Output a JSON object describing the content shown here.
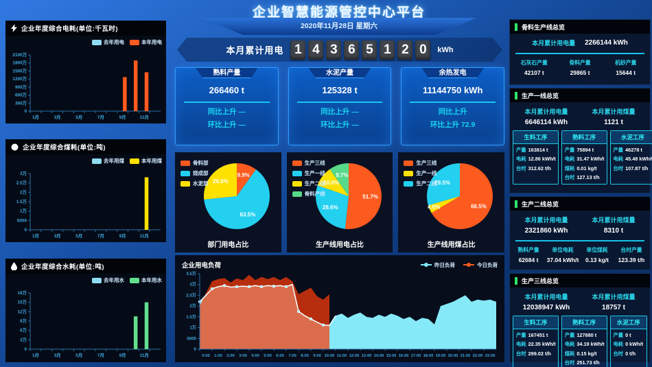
{
  "header": {
    "title": "企业智慧能源管控中心平台",
    "date": "2020年11月28日 星期六"
  },
  "counter": {
    "label": "本月累计用电",
    "digits": [
      "1",
      "4",
      "3",
      "6",
      "5",
      "1",
      "2",
      "0"
    ],
    "unit": "kWh"
  },
  "stat_cards": [
    {
      "title": "熟料产量",
      "value": "266460 t",
      "yoy": "同比上升 —",
      "mom": "环比上升 —"
    },
    {
      "title": "水泥产量",
      "value": "125328 t",
      "yoy": "同比上升 —",
      "mom": "环比上升 —"
    },
    {
      "title": "余热发电",
      "value": "11144750 kWh",
      "yoy": "同比上升",
      "mom": "环比上升 72.9"
    }
  ],
  "right_panels": [
    {
      "title": "骨料生产线总览",
      "stats": [
        {
          "label": "本月累计用电量",
          "value": "2266144 kWh"
        }
      ],
      "bottom": [
        {
          "label": "石灰石产量",
          "value": "42107 t"
        },
        {
          "label": "骨料产量",
          "value": "29865 t"
        },
        {
          "label": "机砂产量",
          "value": "15644 t"
        }
      ]
    },
    {
      "title": "生产一线总览",
      "stats": [
        {
          "label": "本月累计用电量",
          "value": "6646114 kWh"
        },
        {
          "label": "本月累计用煤量",
          "value": "1121 t"
        }
      ],
      "process_cards": [
        {
          "title": "生料工序",
          "rows": [
            [
              "产量",
              "163814 t"
            ],
            [
              "电耗",
              "12.86 kWh/t"
            ],
            [
              "台时",
              "312.62 t/h"
            ]
          ]
        },
        {
          "title": "熟料工序",
          "rows": [
            [
              "产量",
              "75894 t"
            ],
            [
              "电耗",
              "31.47 kWh/t"
            ],
            [
              "煤耗",
              "0.01 kg/t"
            ],
            [
              "台时",
              "127.13 t/h"
            ]
          ]
        },
        {
          "title": "水泥工序",
          "rows": [
            [
              "产量",
              "46278 t"
            ],
            [
              "电耗",
              "45.48 kWh/t"
            ],
            [
              "台时",
              "107.87 t/h"
            ]
          ]
        }
      ]
    },
    {
      "title": "生产二线总览",
      "stats": [
        {
          "label": "本月累计用电量",
          "value": "2321860 kWh"
        },
        {
          "label": "本月累计用煤量",
          "value": "8310 t"
        }
      ],
      "bottom": [
        {
          "label": "熟料产量",
          "value": "62684 t"
        },
        {
          "label": "单位电耗",
          "value": "37.04 kWh/t"
        },
        {
          "label": "单位煤耗",
          "value": "0.13 kg/t"
        },
        {
          "label": "台时产量",
          "value": "123.39 t/h"
        }
      ]
    },
    {
      "title": "生产三线总览",
      "stats": [
        {
          "label": "本月累计用电量",
          "value": "12038947 kWh"
        },
        {
          "label": "本月累计用煤量",
          "value": "18757 t"
        }
      ],
      "process_cards": [
        {
          "title": "生料工序",
          "rows": [
            [
              "产量",
              "167451 t"
            ],
            [
              "电耗",
              "22.35 kWh/t"
            ],
            [
              "台时",
              "299.02 t/h"
            ]
          ]
        },
        {
          "title": "熟料工序",
          "rows": [
            [
              "产量",
              "127880 t"
            ],
            [
              "电耗",
              "34.19 kWh/t"
            ],
            [
              "煤耗",
              "0.15 kg/t"
            ],
            [
              "台时",
              "251.73 t/h"
            ]
          ]
        },
        {
          "title": "水泥工序",
          "rows": [
            [
              "产量",
              "0 t"
            ],
            [
              "电耗",
              "0 kWh/t"
            ],
            [
              "台时",
              "0 t/h"
            ]
          ]
        }
      ]
    }
  ],
  "chart_data": [
    {
      "id": "chart-power",
      "type": "bar",
      "title": "企业年度综合电耗(单位:千瓦时)",
      "categories": [
        "1月",
        "2月",
        "3月",
        "4月",
        "5月",
        "6月",
        "7月",
        "8月",
        "9月",
        "10月",
        "11月",
        "12月"
      ],
      "labeled_categories": [
        "1月",
        "3月",
        "5月",
        "7月",
        "9月",
        "11月"
      ],
      "yticks": [
        "0",
        "300万",
        "600万",
        "900万",
        "1200万",
        "1500万",
        "1800万",
        "2100万"
      ],
      "ymax": 2100,
      "unit_note": "values in 万 kWh",
      "series": [
        {
          "name": "去年用电",
          "color": "#8fdcf2",
          "values": [
            0,
            0,
            0,
            0,
            0,
            0,
            0,
            0,
            0,
            0,
            0,
            0
          ]
        },
        {
          "name": "本年用电",
          "color": "#ff5a1f",
          "values": [
            0,
            0,
            0,
            0,
            0,
            0,
            0,
            0,
            1270,
            1890,
            1450,
            0
          ]
        }
      ]
    },
    {
      "id": "chart-coal",
      "type": "bar",
      "title": "企业年度综合煤耗(单位:吨)",
      "categories": [
        "1月",
        "2月",
        "3月",
        "4月",
        "5月",
        "6月",
        "7月",
        "8月",
        "9月",
        "10月",
        "11月",
        "12月"
      ],
      "labeled_categories": [
        "1月",
        "3月",
        "5月",
        "7月",
        "9月",
        "11月"
      ],
      "yticks": [
        "0",
        "5000",
        "1万",
        "1.5万",
        "2万",
        "2.5万",
        "3万"
      ],
      "ymax": 3,
      "unit_note": "values in 万 t",
      "series": [
        {
          "name": "去年用煤",
          "color": "#8fdcf2",
          "values": [
            0,
            0,
            0,
            0,
            0,
            0,
            0,
            0,
            0,
            0,
            0,
            0
          ]
        },
        {
          "name": "本年用煤",
          "color": "#ffe100",
          "values": [
            0,
            0,
            0,
            0,
            0,
            0,
            0,
            0,
            0,
            0,
            2.8,
            0
          ]
        }
      ]
    },
    {
      "id": "chart-water",
      "type": "bar",
      "title": "企业年度综合水耗(单位:吨)",
      "categories": [
        "1月",
        "2月",
        "3月",
        "4月",
        "5月",
        "6月",
        "7月",
        "8月",
        "9月",
        "10月",
        "11月",
        "12月"
      ],
      "labeled_categories": [
        "1月",
        "3月",
        "5月",
        "7月",
        "9月",
        "11月"
      ],
      "yticks": [
        "0",
        "3万",
        "6万",
        "9万",
        "12万",
        "15万",
        "18万"
      ],
      "ymax": 18,
      "unit_note": "values in 万 t",
      "series": [
        {
          "name": "去年用水",
          "color": "#8fdcf2",
          "values": [
            0,
            0,
            0,
            0,
            0,
            0,
            0,
            0,
            0,
            0,
            0,
            0
          ]
        },
        {
          "name": "本年用水",
          "color": "#62de8d",
          "values": [
            0,
            0,
            0,
            0,
            0,
            0,
            0,
            0,
            0,
            10.5,
            15,
            0
          ]
        }
      ]
    },
    {
      "id": "pie-dept",
      "type": "pie",
      "title": "部门用电占比",
      "slices": [
        {
          "label": "骨料部",
          "value": 9.9,
          "color": "#fc5a1e"
        },
        {
          "label": "烧成部",
          "value": 63.5,
          "color": "#23d0f0"
        },
        {
          "label": "水泥部",
          "value": 26.6,
          "color": "#ffe100"
        }
      ]
    },
    {
      "id": "pie-line-power",
      "type": "pie",
      "title": "生产线用电占比",
      "slices": [
        {
          "label": "生产三线",
          "value": 51.7,
          "color": "#fc5a1e"
        },
        {
          "label": "生产一线",
          "value": 28.6,
          "color": "#23d0f0"
        },
        {
          "label": "生产二线",
          "value": 10.0,
          "color": "#ffe100"
        },
        {
          "label": "骨料产线",
          "value": 9.7,
          "color": "#57d98a"
        }
      ]
    },
    {
      "id": "pie-line-coal",
      "type": "pie",
      "title": "生产线用煤占比",
      "slices": [
        {
          "label": "生产三线",
          "value": 66.5,
          "color": "#fc5a1e"
        },
        {
          "label": "生产一线",
          "value": 4.0,
          "color": "#ffe100"
        },
        {
          "label": "生产二线",
          "value": 29.5,
          "color": "#23d0f0"
        }
      ]
    },
    {
      "id": "area-load",
      "type": "area",
      "title": "企业用电负荷",
      "yticks": [
        "0",
        "5000",
        "1万",
        "1.5万",
        "2万",
        "2.5万",
        "3万",
        "3.5万"
      ],
      "ymax": 3.5,
      "x_labels": [
        "0:00",
        "1:00",
        "2:00",
        "3:00",
        "4:00",
        "5:00",
        "6:00",
        "7:00",
        "8:00",
        "9:00",
        "10:00",
        "11:00",
        "12:00",
        "13:00",
        "14:00",
        "15:00",
        "16:00",
        "17:00",
        "18:00",
        "19:00",
        "20:00",
        "21:00",
        "22:00",
        "23:00"
      ],
      "x_hours": 24,
      "step_hours": 0.5,
      "unit_note": "values in 万 kW",
      "series": [
        {
          "name": "昨日负荷",
          "color": "#86e9f8",
          "line_color": "#f2ffff",
          "x_start": 0,
          "values": [
            2.2,
            2.5,
            2.8,
            2.9,
            2.95,
            2.88,
            2.9,
            2.92,
            2.9,
            2.95,
            2.9,
            2.95,
            2.92,
            2.95,
            2.9,
            3.0,
            1.75,
            1.55,
            1.4,
            1.25,
            1.12,
            1.1,
            1.55,
            1.65,
            1.45,
            1.6,
            1.7,
            1.5,
            1.45,
            1.6,
            1.5,
            1.65,
            1.55,
            1.4,
            1.5,
            1.3,
            1.45,
            1.4,
            1.15,
            2.0,
            2.1,
            2.2,
            2.35,
            2.5,
            2.2,
            2.3,
            2.25,
            2.3,
            2.2
          ]
        },
        {
          "name": "今日负荷",
          "color": "#fc3c0a",
          "x_start": 0,
          "values": [
            2.0,
            2.6,
            3.15,
            3.25,
            3.3,
            3.1,
            3.28,
            3.2,
            3.45,
            3.2,
            3.35,
            3.25,
            3.35,
            3.2,
            3.35,
            3.15,
            2.55,
            2.7,
            2.85,
            2.45,
            2.3,
            2.55
          ]
        }
      ]
    }
  ]
}
